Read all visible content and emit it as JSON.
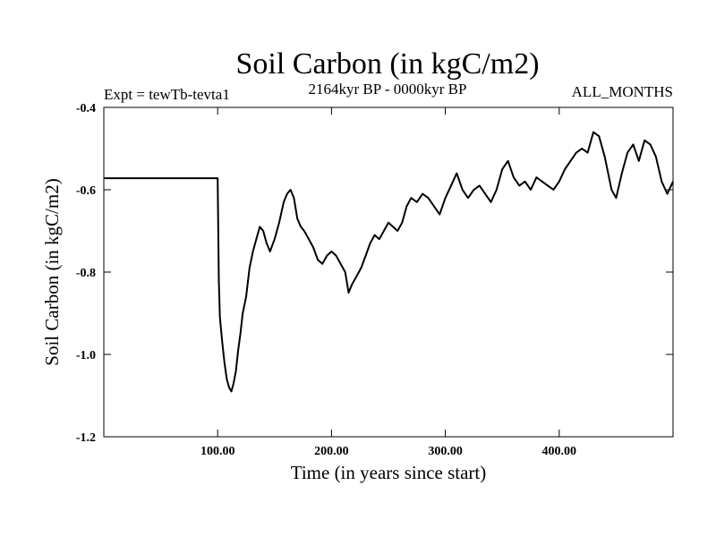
{
  "chart_data": {
    "type": "line",
    "title": "Soil Carbon (in kgC/m2)",
    "subtitle_left": "Expt = tewTb-tevta1",
    "subtitle_center": "2164kyr BP - 0000kyr BP",
    "subtitle_right": "ALL_MONTHS",
    "xlabel": "Time (in years since start)",
    "ylabel": "Soil Carbon (in kgC/m2)",
    "xlim": [
      0,
      500
    ],
    "ylim": [
      -1.2,
      -0.4
    ],
    "x_ticks": [
      100,
      200,
      300,
      400
    ],
    "x_tick_labels": [
      "100.00",
      "200.00",
      "300.00",
      "400.00"
    ],
    "y_ticks": [
      -1.2,
      -1.0,
      -0.8,
      -0.6,
      -0.4
    ],
    "y_tick_labels": [
      "-1.2",
      "-1.0",
      "-0.8",
      "-0.6",
      "-0.4"
    ],
    "grid": false,
    "series": [
      {
        "name": "Soil Carbon",
        "color": "#000000",
        "x": [
          0,
          100,
          101,
          102,
          104,
          106,
          108,
          110,
          112,
          114,
          116,
          118,
          120,
          122,
          125,
          128,
          131,
          134,
          137,
          140,
          143,
          146,
          150,
          154,
          158,
          161,
          164,
          167,
          170,
          173,
          176,
          180,
          184,
          188,
          192,
          196,
          200,
          204,
          208,
          212,
          215,
          218,
          222,
          226,
          230,
          234,
          238,
          242,
          246,
          250,
          254,
          258,
          262,
          266,
          270,
          275,
          280,
          285,
          290,
          295,
          300,
          305,
          310,
          315,
          320,
          325,
          330,
          335,
          340,
          345,
          350,
          355,
          360,
          365,
          370,
          375,
          380,
          385,
          390,
          395,
          400,
          405,
          410,
          415,
          420,
          425,
          430,
          435,
          440,
          443,
          446,
          450,
          455,
          460,
          465,
          470,
          475,
          480,
          485,
          490,
          495,
          500
        ],
        "y": [
          -0.572,
          -0.572,
          -0.82,
          -0.91,
          -0.97,
          -1.02,
          -1.06,
          -1.08,
          -1.09,
          -1.07,
          -1.04,
          -0.99,
          -0.95,
          -0.9,
          -0.86,
          -0.79,
          -0.75,
          -0.72,
          -0.69,
          -0.7,
          -0.73,
          -0.75,
          -0.72,
          -0.68,
          -0.63,
          -0.61,
          -0.6,
          -0.62,
          -0.67,
          -0.69,
          -0.7,
          -0.72,
          -0.74,
          -0.77,
          -0.78,
          -0.76,
          -0.75,
          -0.76,
          -0.78,
          -0.8,
          -0.85,
          -0.83,
          -0.81,
          -0.79,
          -0.76,
          -0.73,
          -0.71,
          -0.72,
          -0.7,
          -0.68,
          -0.69,
          -0.7,
          -0.68,
          -0.64,
          -0.62,
          -0.63,
          -0.61,
          -0.62,
          -0.64,
          -0.66,
          -0.62,
          -0.59,
          -0.56,
          -0.6,
          -0.62,
          -0.6,
          -0.59,
          -0.61,
          -0.63,
          -0.6,
          -0.55,
          -0.53,
          -0.57,
          -0.59,
          -0.58,
          -0.6,
          -0.57,
          -0.58,
          -0.59,
          -0.6,
          -0.58,
          -0.55,
          -0.53,
          -0.51,
          -0.5,
          -0.51,
          -0.46,
          -0.47,
          -0.52,
          -0.56,
          -0.6,
          -0.62,
          -0.56,
          -0.51,
          -0.49,
          -0.53,
          -0.48,
          -0.49,
          -0.52,
          -0.58,
          -0.61,
          -0.58
        ]
      }
    ]
  }
}
